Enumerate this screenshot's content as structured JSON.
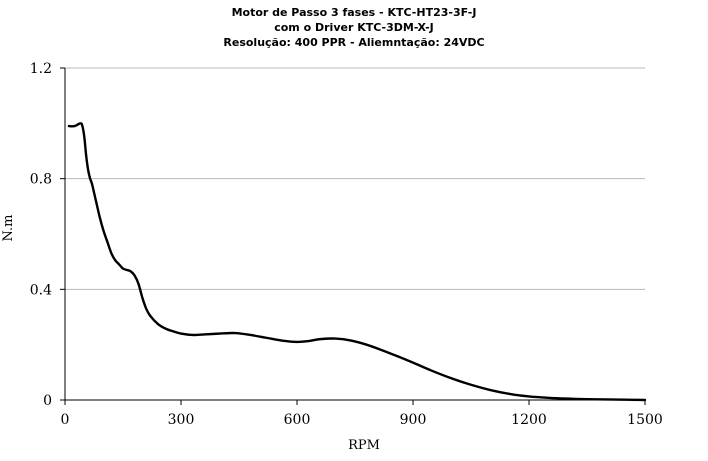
{
  "chart_data": {
    "type": "line",
    "title": [
      "Motor de Passo 3 fases - KTC-HT23-3F-J",
      "com o Driver KTC-3DM-X-J",
      "Resolução: 400 PPR - Aliemntação: 24VDC"
    ],
    "xlabel": "RPM",
    "ylabel": "N.m",
    "xlim": [
      0,
      1500
    ],
    "ylim": [
      0,
      1.2
    ],
    "x_ticks": [
      "0",
      "300",
      "600",
      "900",
      "1200",
      "1500"
    ],
    "y_ticks": [
      "0",
      "0.4",
      "0.8",
      "1.2"
    ],
    "grid": "horizontal",
    "series": [
      {
        "x": [
          10,
          25,
          40,
          45,
          50,
          55,
          60,
          65,
          70,
          80,
          90,
          100,
          110,
          120,
          130,
          140,
          150,
          160,
          170,
          180,
          190,
          200,
          210,
          220,
          240,
          260,
          280,
          300,
          330,
          360,
          400,
          440,
          480,
          520,
          560,
          600,
          630,
          660,
          700,
          740,
          780,
          820,
          860,
          900,
          950,
          1000,
          1050,
          1100,
          1150,
          1200,
          1250,
          1300,
          1350,
          1400,
          1450,
          1500
        ],
        "y": [
          0.99,
          0.99,
          1.0,
          0.99,
          0.95,
          0.88,
          0.83,
          0.8,
          0.78,
          0.72,
          0.66,
          0.61,
          0.57,
          0.53,
          0.505,
          0.49,
          0.475,
          0.47,
          0.465,
          0.45,
          0.42,
          0.37,
          0.33,
          0.305,
          0.275,
          0.258,
          0.248,
          0.24,
          0.235,
          0.237,
          0.24,
          0.242,
          0.235,
          0.225,
          0.215,
          0.21,
          0.213,
          0.22,
          0.222,
          0.215,
          0.2,
          0.18,
          0.158,
          0.135,
          0.105,
          0.078,
          0.055,
          0.036,
          0.022,
          0.013,
          0.008,
          0.005,
          0.003,
          0.002,
          0.001,
          0.0
        ]
      }
    ],
    "line_color": "#000000",
    "grid_color": "#b8b8b8"
  }
}
